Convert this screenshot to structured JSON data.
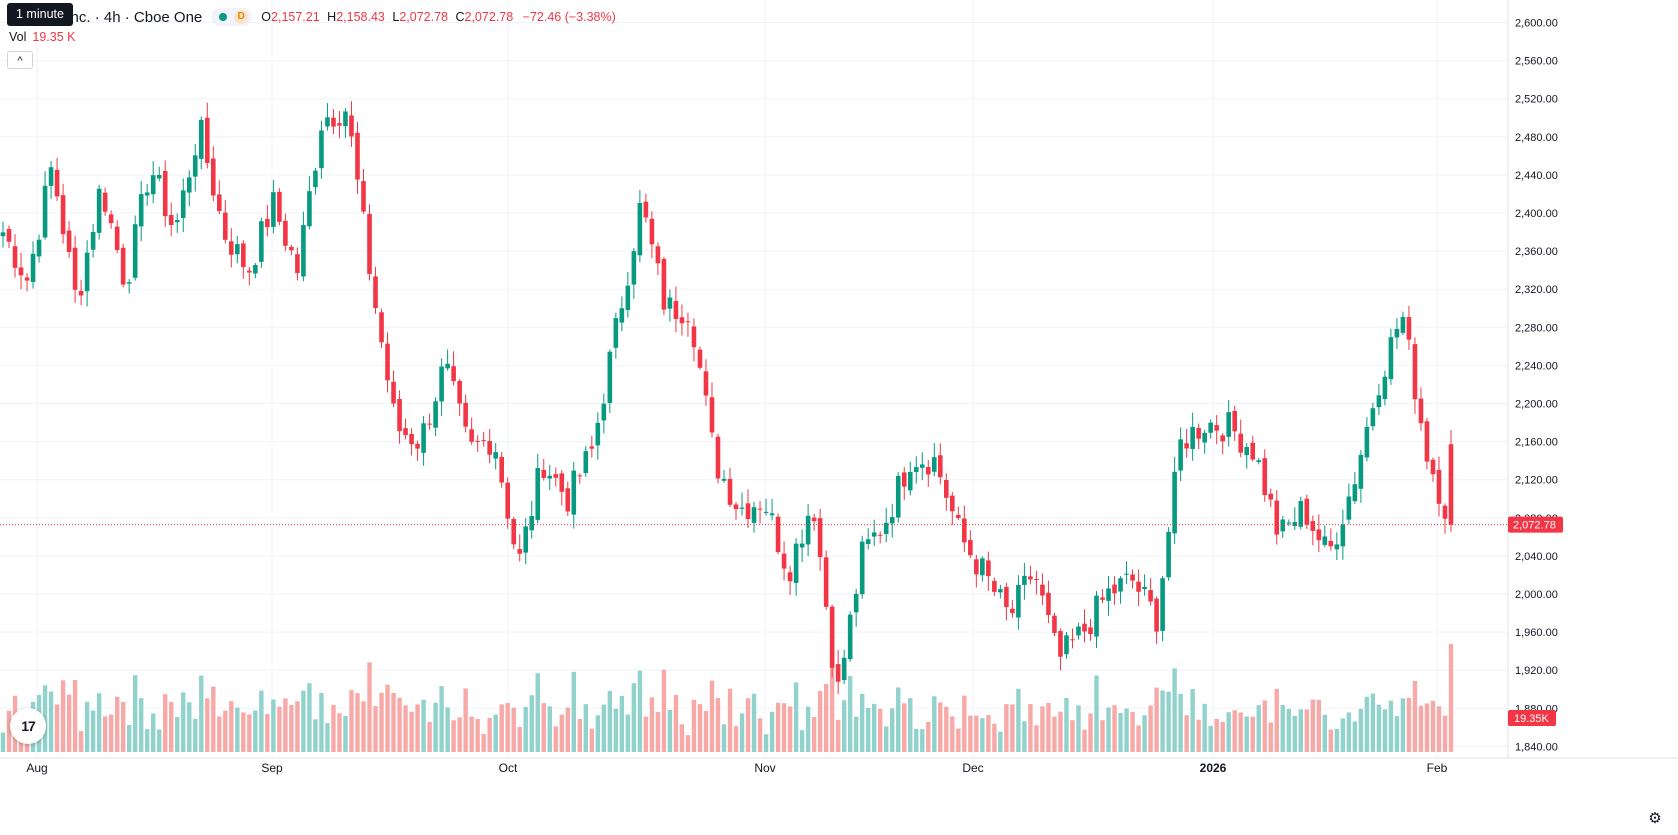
{
  "header": {
    "tooltip": "1 minute",
    "title": "doLibre, Inc. · 4h · Cboe One",
    "interval_badge": "D",
    "o_label": "O",
    "o_value": "2,157.21",
    "h_label": "H",
    "h_value": "2,158.43",
    "l_label": "L",
    "l_value": "2,072.78",
    "c_label": "C",
    "c_value": "2,072.78",
    "change": "−72.46 (−3.38%)",
    "vol_label": "Vol",
    "vol_value": "19.35 K",
    "collapse_icon": "chevron-up-icon"
  },
  "logo": {
    "text": "17",
    "icon": "tradingview-logo"
  },
  "settings": {
    "icon": "gear-icon"
  },
  "colors": {
    "up": "#089981",
    "down": "#f23645",
    "up_volume": "#92d2cc",
    "down_volume": "#f7a9a7",
    "grid": "#f0f3fa",
    "text": "#131722"
  },
  "chart_data": {
    "type": "candlestick",
    "interval": "4h",
    "ylim": [
      1820,
      2620
    ],
    "grid": true,
    "y_ticks": [
      "2,600.00",
      "2,560.00",
      "2,520.00",
      "2,480.00",
      "2,440.00",
      "2,400.00",
      "2,360.00",
      "2,320.00",
      "2,280.00",
      "2,240.00",
      "2,200.00",
      "2,160.00",
      "2,120.00",
      "2,080.00",
      "2,040.00",
      "2,000.00",
      "1,960.00",
      "1,920.00",
      "1,880.00",
      "1,840.00"
    ],
    "x_ticks": [
      "Aug",
      "Sep",
      "Oct",
      "Nov",
      "Dec",
      "2026",
      "Feb"
    ],
    "last_price": "2,072.78",
    "last_volume": "19.35K",
    "anchors": [
      {
        "label": "Jul 31",
        "close": 2380
      },
      {
        "label": "Aug 5",
        "close": 2330
      },
      {
        "label": "Aug 8",
        "close": 2450
      },
      {
        "label": "Aug 13",
        "close": 2305
      },
      {
        "label": "Aug 19",
        "close": 2430
      },
      {
        "label": "Aug 25",
        "close": 2325
      },
      {
        "label": "Aug 28",
        "close": 2450
      },
      {
        "label": "Sep 3",
        "close": 2380
      },
      {
        "label": "Sep 5",
        "close": 2490
      },
      {
        "label": "Sep 8",
        "close": 2380
      },
      {
        "label": "Sep 12",
        "close": 2340
      },
      {
        "label": "Sep 16",
        "close": 2410
      },
      {
        "label": "Sep 19",
        "close": 2340
      },
      {
        "label": "Sep 24",
        "close": 2500
      },
      {
        "label": "Sep 29",
        "close": 2510
      },
      {
        "label": "Sep 30",
        "close": 2330
      },
      {
        "label": "Oct 2",
        "close": 2175
      },
      {
        "label": "Oct 6",
        "close": 2160
      },
      {
        "label": "Oct 10",
        "close": 2240
      },
      {
        "label": "Oct 13",
        "close": 2150
      },
      {
        "label": "Oct 15",
        "close": 2165
      },
      {
        "label": "Oct 17",
        "close": 2030
      },
      {
        "label": "Oct 22",
        "close": 2140
      },
      {
        "label": "Oct 24",
        "close": 2100
      },
      {
        "label": "Oct 27",
        "close": 2150
      },
      {
        "label": "Oct 28",
        "close": 2280
      },
      {
        "label": "Oct 30",
        "close": 2410
      },
      {
        "label": "Oct 31",
        "close": 2300
      },
      {
        "label": "Nov 3",
        "close": 2300
      },
      {
        "label": "Nov 4",
        "close": 2140
      },
      {
        "label": "Nov 6",
        "close": 2090
      },
      {
        "label": "Nov 10",
        "close": 2100
      },
      {
        "label": "Nov 12",
        "close": 2025
      },
      {
        "label": "Nov 17",
        "close": 2100
      },
      {
        "label": "Nov 20",
        "close": 1895
      },
      {
        "label": "Nov 24",
        "close": 2040
      },
      {
        "label": "Nov 26",
        "close": 2080
      },
      {
        "label": "Dec 1",
        "close": 2145
      },
      {
        "label": "Dec 3",
        "close": 2140
      },
      {
        "label": "Dec 5",
        "close": 2060
      },
      {
        "label": "Dec 8",
        "close": 2020
      },
      {
        "label": "Dec 10",
        "close": 1975
      },
      {
        "label": "Dec 12",
        "close": 2025
      },
      {
        "label": "Dec 16",
        "close": 1930
      },
      {
        "label": "Dec 18",
        "close": 1960
      },
      {
        "label": "Dec 22",
        "close": 2000
      },
      {
        "label": "Dec 29",
        "close": 2015
      },
      {
        "label": "Dec 31",
        "close": 1975
      },
      {
        "label": "Jan 2",
        "close": 2160
      },
      {
        "label": "Jan 5",
        "close": 2180
      },
      {
        "label": "Jan 8",
        "close": 2175
      },
      {
        "label": "Jan 12",
        "close": 2150
      },
      {
        "label": "Jan 14",
        "close": 2060
      },
      {
        "label": "Jan 16",
        "close": 2090
      },
      {
        "label": "Jan 20",
        "close": 2040
      },
      {
        "label": "Jan 23",
        "close": 2115
      },
      {
        "label": "Jan 26",
        "close": 2220
      },
      {
        "label": "Jan 28",
        "close": 2295
      },
      {
        "label": "Jan 30",
        "close": 2150
      },
      {
        "label": "Feb 2",
        "close": 2072.78
      }
    ],
    "volume_range": [
      0,
      65000
    ]
  }
}
